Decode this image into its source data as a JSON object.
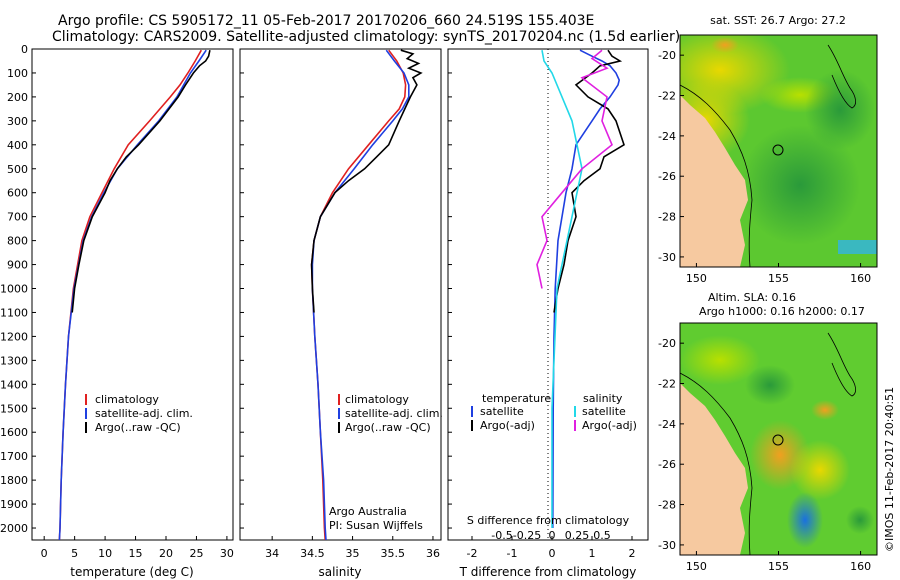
{
  "header": {
    "title_line1": "Argo profile: CS 5905172_11 05-Feb-2017 20170206_660 24.519S 155.403E",
    "title_line2": "Climatology: CARS2009. Satellite-adjusted climatology: synTS_20170204.nc (1.5d earlier)"
  },
  "depth_axis": {
    "ylim": [
      0,
      2050
    ],
    "ticks": [
      0,
      100,
      200,
      300,
      400,
      500,
      600,
      700,
      800,
      900,
      1000,
      1100,
      1200,
      1300,
      1400,
      1500,
      1600,
      1700,
      1800,
      1900,
      2000
    ],
    "tick_labels": [
      "0",
      "100",
      "200",
      "300",
      "400",
      "500",
      "600",
      "700",
      "800",
      "900",
      "1000",
      "1100",
      "1200",
      "1300",
      "1400",
      "1500",
      "1600",
      "1700",
      "1800",
      "1900",
      "2000"
    ]
  },
  "colors": {
    "climatology": "#e02020",
    "satellite": "#1f3fe0",
    "argo": "#000000",
    "sal_satellite": "#22d8e8",
    "sal_argo": "#e020e0",
    "land": "#f6c9a0"
  },
  "chart_data": [
    {
      "type": "line",
      "title": "",
      "xlabel": "temperature (deg C)",
      "ylabel": "",
      "xlim": [
        -2,
        31
      ],
      "ylim": [
        2050,
        0
      ],
      "xticks": [
        0,
        5,
        10,
        15,
        20,
        25,
        30
      ],
      "xtick_labels": [
        "0",
        "5",
        "10",
        "15",
        "20",
        "25",
        "30"
      ],
      "legend": [
        "climatology",
        "satellite-adj. clim.",
        "Argo(..raw -QC)"
      ],
      "series": [
        {
          "name": "climatology",
          "color_key": "climatology",
          "depth": [
            5,
            50,
            100,
            150,
            200,
            300,
            400,
            500,
            600,
            700,
            800,
            1000,
            1200,
            1400,
            1600,
            1800,
            2000,
            2050
          ],
          "values": [
            25.8,
            24.8,
            23.6,
            22.3,
            20.7,
            17.3,
            13.8,
            11.5,
            9.5,
            7.5,
            6.2,
            4.8,
            4.0,
            3.5,
            3.1,
            2.8,
            2.6,
            2.5
          ]
        },
        {
          "name": "satellite-adj. clim.",
          "color_key": "satellite",
          "depth": [
            5,
            50,
            100,
            150,
            200,
            300,
            400,
            500,
            600,
            700,
            800,
            1000,
            1200,
            1400,
            1600,
            1800,
            2000,
            2050
          ],
          "values": [
            26.6,
            25.4,
            24.0,
            22.9,
            21.8,
            18.8,
            15.3,
            12.0,
            9.8,
            7.8,
            6.4,
            4.9,
            4.0,
            3.5,
            3.1,
            2.8,
            2.6,
            2.5
          ]
        },
        {
          "name": "Argo(..raw -QC)",
          "color_key": "argo",
          "depth": [
            5,
            30,
            50,
            70,
            100,
            150,
            200,
            300,
            400,
            450,
            500,
            550,
            600,
            700,
            800,
            900,
            1000,
            1100
          ],
          "values": [
            27.2,
            27.0,
            26.5,
            25.5,
            24.5,
            23.2,
            22.0,
            19.0,
            15.5,
            13.5,
            12.0,
            10.8,
            10.0,
            7.9,
            6.5,
            5.7,
            5.0,
            4.6
          ]
        }
      ]
    },
    {
      "type": "line",
      "title": "",
      "xlabel": "salinity",
      "ylabel": "",
      "xlim": [
        33.6,
        36.1
      ],
      "ylim": [
        2050,
        0
      ],
      "xticks": [
        34,
        34.5,
        35,
        35.5,
        36
      ],
      "xtick_labels": [
        "34",
        "34.5",
        "35",
        "35.5",
        "36"
      ],
      "legend": [
        "climatology",
        "satellite-adj. clim.",
        "Argo(..raw -QC)"
      ],
      "annotations": [
        "Argo Australia",
        "PI: Susan Wijffels"
      ],
      "series": [
        {
          "name": "climatology",
          "color_key": "climatology",
          "depth": [
            5,
            50,
            100,
            150,
            200,
            250,
            300,
            400,
            500,
            600,
            700,
            800,
            900,
            1000,
            1200,
            1400,
            1600,
            1800,
            2000,
            2050
          ],
          "values": [
            35.45,
            35.55,
            35.63,
            35.66,
            35.65,
            35.58,
            35.45,
            35.2,
            34.95,
            34.75,
            34.6,
            34.52,
            34.49,
            34.5,
            34.53,
            34.57,
            34.6,
            34.63,
            34.65,
            34.66
          ]
        },
        {
          "name": "satellite-adj. clim.",
          "color_key": "satellite",
          "depth": [
            5,
            50,
            100,
            150,
            200,
            250,
            300,
            400,
            500,
            600,
            700,
            800,
            900,
            1000,
            1200,
            1400,
            1600,
            1800,
            2000,
            2050
          ],
          "values": [
            35.42,
            35.52,
            35.64,
            35.7,
            35.7,
            35.62,
            35.5,
            35.25,
            35.02,
            34.78,
            34.6,
            34.52,
            34.5,
            34.5,
            34.53,
            34.57,
            34.6,
            34.64,
            34.66,
            34.67
          ]
        },
        {
          "name": "Argo(..raw -QC)",
          "color_key": "argo",
          "depth": [
            5,
            20,
            40,
            60,
            80,
            100,
            120,
            150,
            200,
            250,
            300,
            400,
            450,
            500,
            550,
            600,
            700,
            800,
            900,
            1000,
            1100
          ],
          "values": [
            35.6,
            35.75,
            35.68,
            35.82,
            35.7,
            35.85,
            35.75,
            35.8,
            35.72,
            35.65,
            35.58,
            35.45,
            35.3,
            35.15,
            34.95,
            34.78,
            34.6,
            34.52,
            34.49,
            34.5,
            34.52
          ]
        }
      ]
    },
    {
      "type": "line",
      "title": "",
      "xlabel": "T difference from climatology",
      "xlabel_top": "S difference from climatology",
      "ylabel": "",
      "xlim": [
        -2.6,
        2.4
      ],
      "ylim": [
        2050,
        0
      ],
      "xticks": [
        -2,
        -1,
        0,
        1,
        2
      ],
      "xtick_labels": [
        "-2",
        "-1",
        "0",
        "1",
        "2"
      ],
      "sticks": [
        -0.5,
        -0.25,
        0,
        0.25,
        0.5
      ],
      "stick_labels": [
        "-0.5",
        "-0.25",
        "0",
        "0.25",
        "0.5"
      ],
      "legend_left_title": "temperature",
      "legend_right_title": "salinity",
      "legend": [
        "satellite",
        "Argo(-adj)",
        "satellite",
        "Argo(-adj)"
      ],
      "series": [
        {
          "name": "T satellite",
          "color_key": "satellite",
          "depth": [
            5,
            30,
            50,
            70,
            100,
            130,
            150,
            200,
            250,
            300,
            400,
            500,
            600,
            700,
            800,
            1000,
            1200,
            1500,
            2000
          ],
          "values": [
            0.7,
            1.0,
            1.25,
            1.45,
            1.6,
            1.68,
            1.65,
            1.45,
            1.2,
            1.0,
            0.6,
            0.5,
            0.35,
            0.25,
            0.15,
            0.08,
            0.05,
            0.03,
            0.02
          ]
        },
        {
          "name": "T Argo(-adj)",
          "color_key": "argo",
          "depth": [
            5,
            30,
            50,
            70,
            100,
            150,
            200,
            250,
            300,
            400,
            450,
            500,
            550,
            600,
            700,
            800,
            900,
            1000,
            1100
          ],
          "values": [
            1.4,
            1.5,
            1.7,
            1.2,
            1.0,
            0.6,
            0.9,
            1.4,
            1.6,
            1.8,
            1.3,
            1.2,
            0.8,
            0.5,
            0.6,
            0.4,
            0.3,
            0.15,
            0.05
          ]
        },
        {
          "name": "S satellite",
          "color_key": "sal_satellite",
          "depth": [
            5,
            50,
            100,
            200,
            300,
            500,
            700,
            1000,
            1500,
            2000
          ],
          "values": [
            -0.1,
            -0.08,
            0.0,
            0.1,
            0.2,
            0.3,
            0.2,
            0.05,
            0.0,
            0.0
          ]
        },
        {
          "name": "S Argo(-adj)",
          "color_key": "sal_argo",
          "depth": [
            5,
            40,
            80,
            120,
            200,
            300,
            400,
            500,
            600,
            700,
            800,
            900,
            1000
          ],
          "values": [
            0.5,
            0.4,
            0.55,
            0.3,
            0.55,
            0.5,
            0.6,
            0.3,
            0.1,
            -0.1,
            -0.05,
            -0.15,
            -0.1
          ]
        }
      ]
    }
  ],
  "maps": {
    "sst": {
      "title": "sat. SST: 26.7  Argo: 27.2",
      "xticks": [
        150,
        155,
        160
      ],
      "xtick_labels": [
        "150",
        "155",
        "160"
      ],
      "yticks": [
        -20,
        -22,
        -24,
        -26,
        -28,
        -30
      ],
      "ytick_labels": [
        "-20",
        "-22",
        "-24",
        "-26",
        "-28",
        "-30"
      ]
    },
    "sla": {
      "title_line1": "Altim. SLA: 0.16",
      "title_line2": "Argo h1000: 0.16 h2000: 0.17",
      "xticks": [
        150,
        155,
        160
      ],
      "xtick_labels": [
        "150",
        "155",
        "160"
      ],
      "yticks": [
        -20,
        -22,
        -24,
        -26,
        -28,
        -30
      ],
      "ytick_labels": [
        "-20",
        "-22",
        "-24",
        "-26",
        "-28",
        "-30"
      ]
    },
    "footer": "©IMOS 11-Feb-2017 20:40:51"
  }
}
